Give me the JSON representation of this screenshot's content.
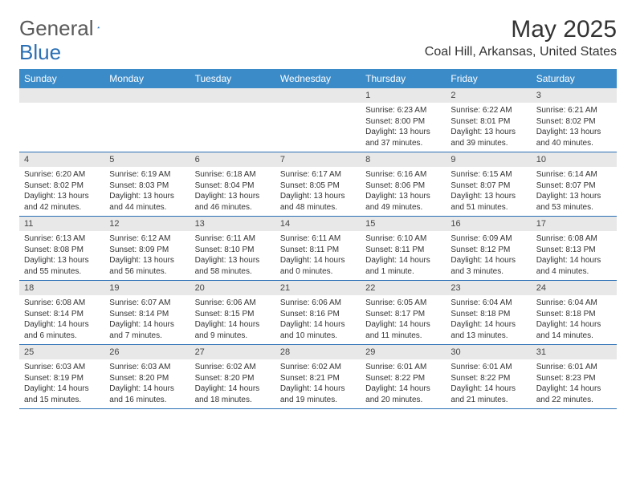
{
  "logo": {
    "text1": "General",
    "text2": "Blue"
  },
  "title": "May 2025",
  "location": "Coal Hill, Arkansas, United States",
  "colors": {
    "header_bg": "#3b8bc9",
    "header_text": "#ffffff",
    "daynum_bg": "#e8e8e8",
    "week_border": "#2a6fb5",
    "logo_gray": "#5a5a5a",
    "logo_blue": "#2a6fb5",
    "body_text": "#333333"
  },
  "day_names": [
    "Sunday",
    "Monday",
    "Tuesday",
    "Wednesday",
    "Thursday",
    "Friday",
    "Saturday"
  ],
  "weeks": [
    [
      null,
      null,
      null,
      null,
      {
        "n": "1",
        "sr": "Sunrise: 6:23 AM",
        "ss": "Sunset: 8:00 PM",
        "d1": "Daylight: 13 hours",
        "d2": "and 37 minutes."
      },
      {
        "n": "2",
        "sr": "Sunrise: 6:22 AM",
        "ss": "Sunset: 8:01 PM",
        "d1": "Daylight: 13 hours",
        "d2": "and 39 minutes."
      },
      {
        "n": "3",
        "sr": "Sunrise: 6:21 AM",
        "ss": "Sunset: 8:02 PM",
        "d1": "Daylight: 13 hours",
        "d2": "and 40 minutes."
      }
    ],
    [
      {
        "n": "4",
        "sr": "Sunrise: 6:20 AM",
        "ss": "Sunset: 8:02 PM",
        "d1": "Daylight: 13 hours",
        "d2": "and 42 minutes."
      },
      {
        "n": "5",
        "sr": "Sunrise: 6:19 AM",
        "ss": "Sunset: 8:03 PM",
        "d1": "Daylight: 13 hours",
        "d2": "and 44 minutes."
      },
      {
        "n": "6",
        "sr": "Sunrise: 6:18 AM",
        "ss": "Sunset: 8:04 PM",
        "d1": "Daylight: 13 hours",
        "d2": "and 46 minutes."
      },
      {
        "n": "7",
        "sr": "Sunrise: 6:17 AM",
        "ss": "Sunset: 8:05 PM",
        "d1": "Daylight: 13 hours",
        "d2": "and 48 minutes."
      },
      {
        "n": "8",
        "sr": "Sunrise: 6:16 AM",
        "ss": "Sunset: 8:06 PM",
        "d1": "Daylight: 13 hours",
        "d2": "and 49 minutes."
      },
      {
        "n": "9",
        "sr": "Sunrise: 6:15 AM",
        "ss": "Sunset: 8:07 PM",
        "d1": "Daylight: 13 hours",
        "d2": "and 51 minutes."
      },
      {
        "n": "10",
        "sr": "Sunrise: 6:14 AM",
        "ss": "Sunset: 8:07 PM",
        "d1": "Daylight: 13 hours",
        "d2": "and 53 minutes."
      }
    ],
    [
      {
        "n": "11",
        "sr": "Sunrise: 6:13 AM",
        "ss": "Sunset: 8:08 PM",
        "d1": "Daylight: 13 hours",
        "d2": "and 55 minutes."
      },
      {
        "n": "12",
        "sr": "Sunrise: 6:12 AM",
        "ss": "Sunset: 8:09 PM",
        "d1": "Daylight: 13 hours",
        "d2": "and 56 minutes."
      },
      {
        "n": "13",
        "sr": "Sunrise: 6:11 AM",
        "ss": "Sunset: 8:10 PM",
        "d1": "Daylight: 13 hours",
        "d2": "and 58 minutes."
      },
      {
        "n": "14",
        "sr": "Sunrise: 6:11 AM",
        "ss": "Sunset: 8:11 PM",
        "d1": "Daylight: 14 hours",
        "d2": "and 0 minutes."
      },
      {
        "n": "15",
        "sr": "Sunrise: 6:10 AM",
        "ss": "Sunset: 8:11 PM",
        "d1": "Daylight: 14 hours",
        "d2": "and 1 minute."
      },
      {
        "n": "16",
        "sr": "Sunrise: 6:09 AM",
        "ss": "Sunset: 8:12 PM",
        "d1": "Daylight: 14 hours",
        "d2": "and 3 minutes."
      },
      {
        "n": "17",
        "sr": "Sunrise: 6:08 AM",
        "ss": "Sunset: 8:13 PM",
        "d1": "Daylight: 14 hours",
        "d2": "and 4 minutes."
      }
    ],
    [
      {
        "n": "18",
        "sr": "Sunrise: 6:08 AM",
        "ss": "Sunset: 8:14 PM",
        "d1": "Daylight: 14 hours",
        "d2": "and 6 minutes."
      },
      {
        "n": "19",
        "sr": "Sunrise: 6:07 AM",
        "ss": "Sunset: 8:14 PM",
        "d1": "Daylight: 14 hours",
        "d2": "and 7 minutes."
      },
      {
        "n": "20",
        "sr": "Sunrise: 6:06 AM",
        "ss": "Sunset: 8:15 PM",
        "d1": "Daylight: 14 hours",
        "d2": "and 9 minutes."
      },
      {
        "n": "21",
        "sr": "Sunrise: 6:06 AM",
        "ss": "Sunset: 8:16 PM",
        "d1": "Daylight: 14 hours",
        "d2": "and 10 minutes."
      },
      {
        "n": "22",
        "sr": "Sunrise: 6:05 AM",
        "ss": "Sunset: 8:17 PM",
        "d1": "Daylight: 14 hours",
        "d2": "and 11 minutes."
      },
      {
        "n": "23",
        "sr": "Sunrise: 6:04 AM",
        "ss": "Sunset: 8:18 PM",
        "d1": "Daylight: 14 hours",
        "d2": "and 13 minutes."
      },
      {
        "n": "24",
        "sr": "Sunrise: 6:04 AM",
        "ss": "Sunset: 8:18 PM",
        "d1": "Daylight: 14 hours",
        "d2": "and 14 minutes."
      }
    ],
    [
      {
        "n": "25",
        "sr": "Sunrise: 6:03 AM",
        "ss": "Sunset: 8:19 PM",
        "d1": "Daylight: 14 hours",
        "d2": "and 15 minutes."
      },
      {
        "n": "26",
        "sr": "Sunrise: 6:03 AM",
        "ss": "Sunset: 8:20 PM",
        "d1": "Daylight: 14 hours",
        "d2": "and 16 minutes."
      },
      {
        "n": "27",
        "sr": "Sunrise: 6:02 AM",
        "ss": "Sunset: 8:20 PM",
        "d1": "Daylight: 14 hours",
        "d2": "and 18 minutes."
      },
      {
        "n": "28",
        "sr": "Sunrise: 6:02 AM",
        "ss": "Sunset: 8:21 PM",
        "d1": "Daylight: 14 hours",
        "d2": "and 19 minutes."
      },
      {
        "n": "29",
        "sr": "Sunrise: 6:01 AM",
        "ss": "Sunset: 8:22 PM",
        "d1": "Daylight: 14 hours",
        "d2": "and 20 minutes."
      },
      {
        "n": "30",
        "sr": "Sunrise: 6:01 AM",
        "ss": "Sunset: 8:22 PM",
        "d1": "Daylight: 14 hours",
        "d2": "and 21 minutes."
      },
      {
        "n": "31",
        "sr": "Sunrise: 6:01 AM",
        "ss": "Sunset: 8:23 PM",
        "d1": "Daylight: 14 hours",
        "d2": "and 22 minutes."
      }
    ]
  ]
}
